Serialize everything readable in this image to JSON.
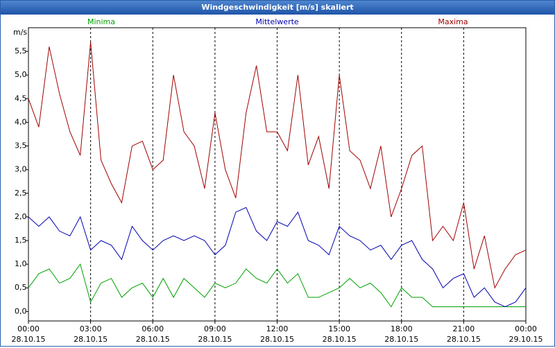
{
  "chart_data": {
    "type": "line",
    "title": "Windgeschwindigkeit [m/s] skaliert",
    "y_label": "m/s",
    "x": [
      0,
      0.5,
      1,
      1.5,
      2,
      2.5,
      3,
      3.5,
      4,
      4.5,
      5,
      5.5,
      6,
      6.5,
      7,
      7.5,
      8,
      8.5,
      9,
      9.5,
      10,
      10.5,
      11,
      11.5,
      12,
      12.5,
      13,
      13.5,
      14,
      14.5,
      15,
      15.5,
      16,
      16.5,
      17,
      17.5,
      18,
      18.5,
      19,
      19.5,
      20,
      20.5,
      21,
      21.5,
      22,
      22.5,
      23,
      23.5,
      24
    ],
    "series": [
      {
        "name": "Minima",
        "color": "#00a000",
        "values": [
          0.5,
          0.8,
          0.9,
          0.6,
          0.7,
          1.0,
          0.2,
          0.6,
          0.7,
          0.3,
          0.5,
          0.6,
          0.3,
          0.7,
          0.3,
          0.7,
          0.5,
          0.3,
          0.6,
          0.5,
          0.6,
          0.9,
          0.7,
          0.6,
          0.9,
          0.6,
          0.8,
          0.3,
          0.3,
          0.4,
          0.5,
          0.7,
          0.5,
          0.6,
          0.4,
          0.1,
          0.5,
          0.3,
          0.3,
          0.1,
          0.1,
          0.1,
          0.1,
          0.1,
          0.1,
          0.1,
          0.1,
          0.1,
          0.1
        ]
      },
      {
        "name": "Mittelwerte",
        "color": "#0000b0",
        "values": [
          2.0,
          1.8,
          2.0,
          1.7,
          1.6,
          2.0,
          1.3,
          1.5,
          1.4,
          1.1,
          1.8,
          1.5,
          1.3,
          1.5,
          1.6,
          1.5,
          1.6,
          1.5,
          1.2,
          1.4,
          2.1,
          2.2,
          1.7,
          1.5,
          1.9,
          1.8,
          2.1,
          1.5,
          1.4,
          1.2,
          1.8,
          1.6,
          1.5,
          1.3,
          1.4,
          1.1,
          1.4,
          1.5,
          1.1,
          0.9,
          0.5,
          0.7,
          0.8,
          0.3,
          0.5,
          0.2,
          0.1,
          0.2,
          0.5
        ]
      },
      {
        "name": "Maxima",
        "color": "#a00000",
        "values": [
          4.5,
          3.9,
          5.6,
          4.6,
          3.8,
          3.3,
          5.7,
          3.2,
          2.7,
          2.3,
          3.5,
          3.6,
          3.0,
          3.2,
          5.0,
          3.8,
          3.5,
          2.6,
          4.2,
          3.0,
          2.4,
          4.2,
          5.2,
          3.8,
          3.8,
          3.4,
          5.0,
          3.1,
          3.7,
          2.6,
          5.0,
          3.4,
          3.2,
          2.6,
          3.5,
          2.0,
          2.6,
          3.3,
          3.5,
          1.5,
          1.8,
          1.5,
          2.3,
          0.9,
          1.6,
          0.5,
          0.9,
          1.2,
          1.3
        ]
      }
    ],
    "xlim": [
      0,
      24
    ],
    "xticks": [
      {
        "value": 0,
        "label": "00:00",
        "date": "28.10.15"
      },
      {
        "value": 3,
        "label": "03:00",
        "date": "28.10.15"
      },
      {
        "value": 6,
        "label": "06:00",
        "date": "28.10.15"
      },
      {
        "value": 9,
        "label": "09:00",
        "date": "28.10.15"
      },
      {
        "value": 12,
        "label": "12:00",
        "date": "28.10.15"
      },
      {
        "value": 15,
        "label": "15:00",
        "date": "28.10.15"
      },
      {
        "value": 18,
        "label": "18:00",
        "date": "28.10.15"
      },
      {
        "value": 21,
        "label": "21:00",
        "date": "28.10.15"
      },
      {
        "value": 24,
        "label": "00:00",
        "date": "29.10.15"
      }
    ],
    "ylim": [
      -0.2,
      6.0
    ],
    "yticks": [
      {
        "value": 0,
        "label": "0,0"
      },
      {
        "value": 0.5,
        "label": "0,5"
      },
      {
        "value": 1,
        "label": "1,0"
      },
      {
        "value": 1.5,
        "label": "1,5"
      },
      {
        "value": 2,
        "label": "2,0"
      },
      {
        "value": 2.5,
        "label": "2,5"
      },
      {
        "value": 3,
        "label": "3,0"
      },
      {
        "value": 3.5,
        "label": "3,5"
      },
      {
        "value": 4,
        "label": "4,0"
      },
      {
        "value": 4.5,
        "label": "4,5"
      },
      {
        "value": 5,
        "label": "5,0"
      },
      {
        "value": 5.5,
        "label": "5,5"
      }
    ],
    "grid": "x"
  }
}
